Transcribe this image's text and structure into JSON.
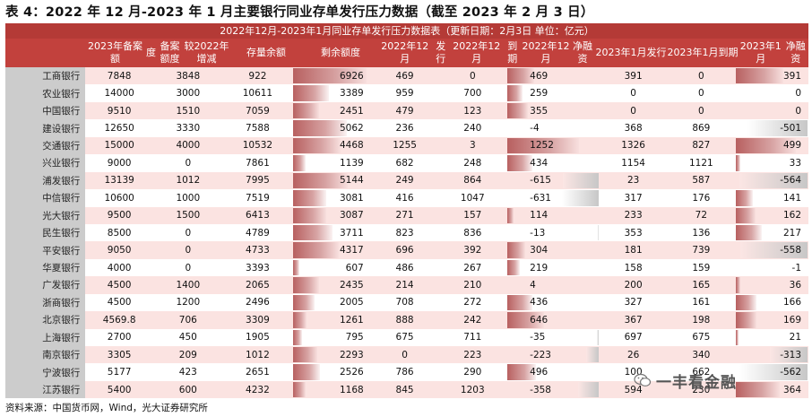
{
  "title": "表 4：2022 年 12 月-2023 年 1 月主要银行同业存单发行压力数据（截至 2023 年 2 月 3 日）",
  "table": {
    "caption": "2022年12月-2023年1月同业存单发行压力数据表（更新日期：2月3日 单位：亿元）",
    "headers": [
      "",
      "2023年备案额度",
      "备案额度较2022年增减",
      "存量余额",
      "剩余额度",
      "2022年12月发行",
      "2022年12月到期",
      "2022年12月净融资",
      "2023年1月发行",
      "2023年1月到期",
      "2023年1月净融资"
    ],
    "rows": [
      [
        "工商银行",
        "7848",
        "3848",
        "922",
        "6926",
        "469",
        "0",
        "469",
        "391",
        "0",
        "391"
      ],
      [
        "农业银行",
        "14000",
        "3000",
        "10611",
        "3389",
        "959",
        "700",
        "259",
        "0",
        "0",
        "0"
      ],
      [
        "中国银行",
        "9510",
        "1510",
        "7059",
        "2451",
        "479",
        "123",
        "355",
        "0",
        "0",
        "0"
      ],
      [
        "建设银行",
        "12650",
        "3330",
        "7588",
        "5062",
        "236",
        "240",
        "-4",
        "368",
        "869",
        "-501"
      ],
      [
        "交通银行",
        "15000",
        "4000",
        "10532",
        "4468",
        "1255",
        "3",
        "1252",
        "1326",
        "827",
        "499"
      ],
      [
        "兴业银行",
        "9000",
        "0",
        "7861",
        "1139",
        "682",
        "248",
        "434",
        "1154",
        "1121",
        "33"
      ],
      [
        "浦发银行",
        "13139",
        "1012",
        "7995",
        "5144",
        "249",
        "864",
        "-615",
        "23",
        "587",
        "-564"
      ],
      [
        "中信银行",
        "10600",
        "1000",
        "7519",
        "3081",
        "416",
        "1047",
        "-631",
        "317",
        "176",
        "141"
      ],
      [
        "光大银行",
        "9500",
        "1500",
        "6413",
        "3087",
        "271",
        "157",
        "114",
        "233",
        "72",
        "162"
      ],
      [
        "民生银行",
        "8500",
        "0",
        "4789",
        "3711",
        "823",
        "836",
        "-13",
        "353",
        "136",
        "217"
      ],
      [
        "平安银行",
        "9050",
        "0",
        "4733",
        "4317",
        "696",
        "392",
        "304",
        "181",
        "739",
        "-558"
      ],
      [
        "华夏银行",
        "4000",
        "0",
        "3393",
        "607",
        "486",
        "267",
        "219",
        "158",
        "159",
        "-1"
      ],
      [
        "广发银行",
        "4500",
        "1400",
        "2065",
        "2435",
        "214",
        "210",
        "4",
        "200",
        "165",
        "36"
      ],
      [
        "浙商银行",
        "4500",
        "1200",
        "2496",
        "2005",
        "708",
        "272",
        "436",
        "327",
        "161",
        "166"
      ],
      [
        "北京银行",
        "4569.8",
        "706",
        "3309",
        "1261",
        "888",
        "242",
        "646",
        "367",
        "198",
        "169"
      ],
      [
        "上海银行",
        "2700",
        "450",
        "1905",
        "795",
        "675",
        "711",
        "-35",
        "697",
        "675",
        "21"
      ],
      [
        "南京银行",
        "3305",
        "209",
        "1012",
        "2293",
        "0",
        "223",
        "-223",
        "26",
        "340",
        "-313"
      ],
      [
        "宁波银行",
        "5177",
        "423",
        "2651",
        "2526",
        "786",
        "290",
        "496",
        "100",
        "662",
        "-562"
      ],
      [
        "江苏银行",
        "5400",
        "600",
        "4232",
        "1168",
        "845",
        "1203",
        "-358",
        "594",
        "230",
        "364"
      ]
    ]
  },
  "source": "资料来源：中国货币网，Wind，光大证券研究所",
  "watermark": "一丰看金融",
  "watermark_icon": "wechat-icon",
  "colors": {
    "header": "#c2413d",
    "stripe": "#fbe3e1",
    "bank_col": "#cccccc",
    "bar_pos": "#b86060",
    "bar_neg": "#c7c7c7"
  }
}
